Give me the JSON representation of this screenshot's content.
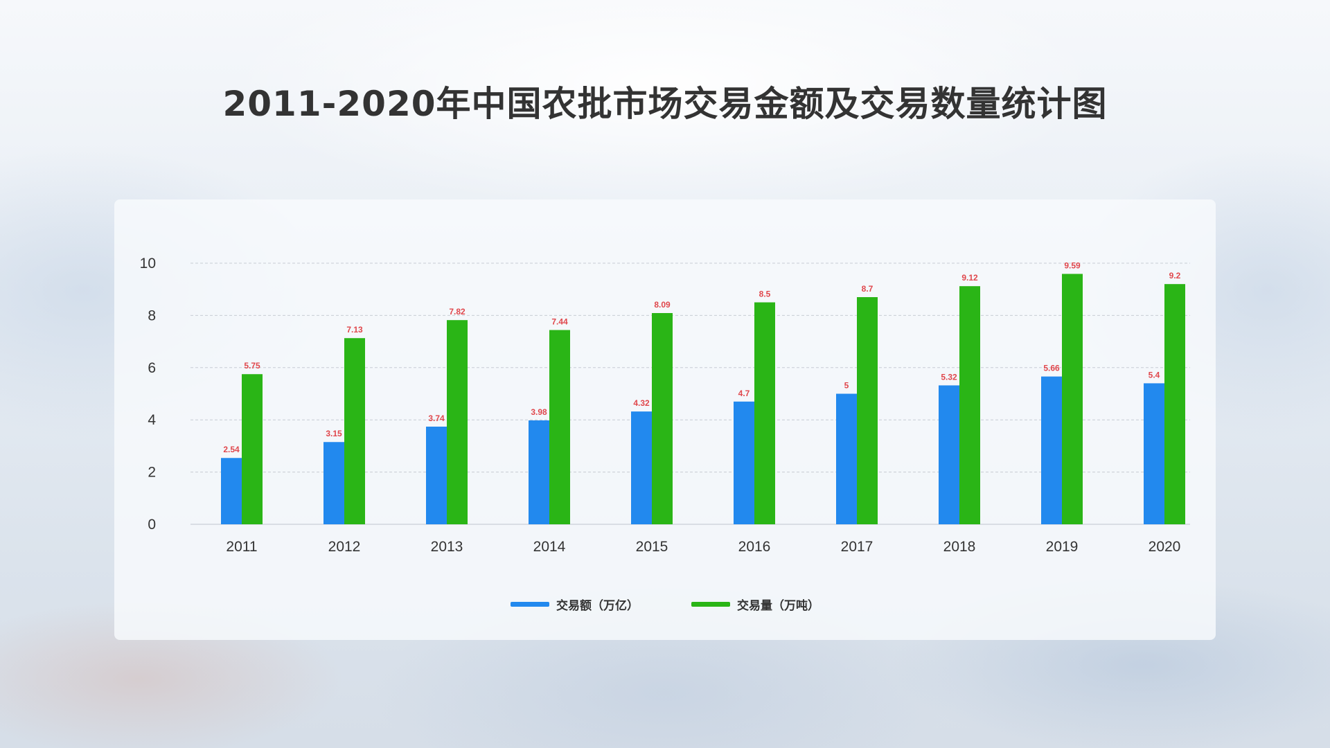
{
  "title": "2011-2020年中国农批市场交易金额及交易数量统计图",
  "colors": {
    "amount": "#2289ee",
    "volume": "#2ab516",
    "data_label": "#e0474c"
  },
  "chart_data": {
    "type": "bar",
    "title": "2011-2020年中国农批市场交易金额及交易数量统计图",
    "xlabel": "",
    "ylabel": "",
    "categories": [
      "2011",
      "2012",
      "2013",
      "2014",
      "2015",
      "2016",
      "2017",
      "2018",
      "2019",
      "2020"
    ],
    "series": [
      {
        "name": "交易额（万亿）",
        "color": "#2289ee",
        "values": [
          2.54,
          3.15,
          3.74,
          3.98,
          4.32,
          4.7,
          5,
          5.32,
          5.66,
          5.4
        ]
      },
      {
        "name": "交易量（万吨）",
        "color": "#2ab516",
        "values": [
          5.75,
          7.13,
          7.82,
          7.44,
          8.09,
          8.5,
          8.7,
          9.12,
          9.59,
          9.2
        ]
      }
    ],
    "yticks": [
      "0",
      "2",
      "4",
      "6",
      "8",
      "10"
    ],
    "ylim": [
      0,
      10
    ],
    "grid": true,
    "legend_position": "bottom"
  }
}
